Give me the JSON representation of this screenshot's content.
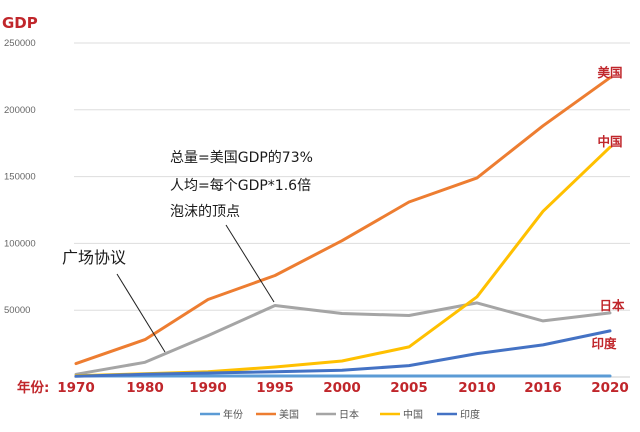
{
  "chart_data": {
    "type": "line",
    "ylabel": "GDP",
    "x_prefix_label": "年份:",
    "categories": [
      "1970",
      "1980",
      "1990",
      "1995",
      "2000",
      "2005",
      "2010",
      "2016",
      "2020"
    ],
    "ylim": [
      0,
      250000
    ],
    "yticks": [
      "250000",
      "200000",
      "150000",
      "100000",
      "50000"
    ],
    "grid": true,
    "legend_position": "bottom",
    "series": [
      {
        "name": "年份",
        "color": "#5b9bd5",
        "values": [
          1970,
          1980,
          1990,
          1995,
          2000,
          2005,
          2010,
          2016,
          2020
        ]
      },
      {
        "name": "美国",
        "color": "#ed7d31",
        "label": "美国",
        "values": [
          10000,
          28000,
          58000,
          76000,
          102000,
          131000,
          149000,
          188000,
          224000
        ]
      },
      {
        "name": "日本",
        "color": "#a5a5a5",
        "label": "日本",
        "values": [
          2000,
          11000,
          31000,
          53500,
          47500,
          46000,
          55500,
          42000,
          48000
        ]
      },
      {
        "name": "中国",
        "color": "#ffc000",
        "label": "中国",
        "values": [
          1000,
          2500,
          4000,
          7500,
          12000,
          22500,
          60000,
          124000,
          172000
        ]
      },
      {
        "name": "印度",
        "color": "#4472c4",
        "label": "印度",
        "values": [
          500,
          2000,
          3000,
          4000,
          5000,
          8500,
          17500,
          24000,
          34500
        ]
      }
    ],
    "annotations": [
      {
        "id": "plaza",
        "text": "广场协议"
      },
      {
        "id": "bubble",
        "lines": [
          "总量=美国GDP的73%",
          "人均=每个GDP*1.6倍",
          "泡沫的顶点"
        ]
      }
    ]
  }
}
